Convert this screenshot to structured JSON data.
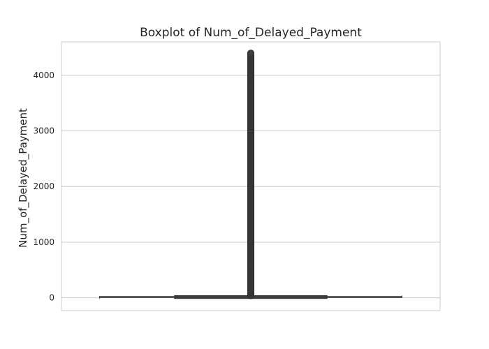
{
  "chart_data": {
    "type": "box",
    "title": "Boxplot of Num_of_Delayed_Payment",
    "xlabel": "",
    "ylabel": "Num_of_Delayed_Payment",
    "ylim": [
      -230,
      4600
    ],
    "yticks": [
      0,
      1000,
      2000,
      3000,
      4000
    ],
    "grid": true,
    "legend": false,
    "box": {
      "whisker_low": -3,
      "q1": 9,
      "median": 14,
      "q3": 18,
      "whisker_high": 28
    },
    "outliers_range": [
      40,
      4397
    ],
    "colors": {
      "box": "#3a3a3a",
      "grid": "#cccccc",
      "frame": "#cccccc",
      "text": "#262626"
    }
  }
}
